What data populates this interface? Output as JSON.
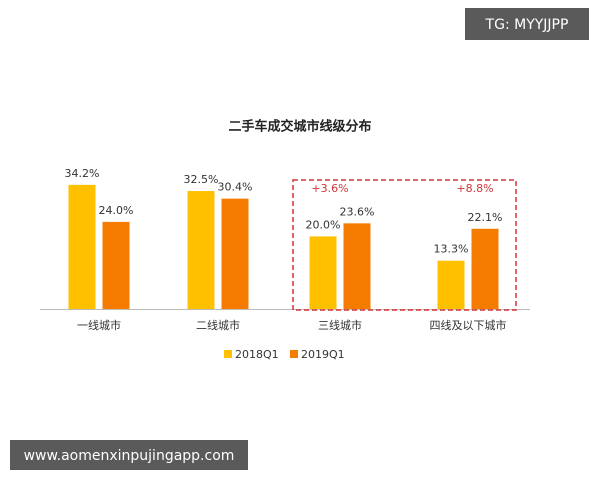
{
  "chart_data": {
    "type": "bar",
    "title": "二手车成交城市线级分布",
    "categories": [
      "一线城市",
      "二线城市",
      "三线城市",
      "四线及以下城市"
    ],
    "series": [
      {
        "name": "2018Q1",
        "color": "#FFC000",
        "values": [
          34.2,
          32.5,
          20.0,
          13.3
        ],
        "value_labels": [
          "34.2%",
          "32.5%",
          "20.0%",
          "13.3%"
        ]
      },
      {
        "name": "2019Q1",
        "color": "#F57C00",
        "values": [
          24.0,
          30.4,
          23.6,
          22.1
        ],
        "value_labels": [
          "24.0%",
          "30.4%",
          "23.6%",
          "22.1%"
        ]
      }
    ],
    "annotations": [
      "+3.6%",
      "+8.8%"
    ],
    "legend": "bottom"
  },
  "watermarks": [
    "TG: MYYJJPP",
    "www.aomenxinpujingapp.com"
  ]
}
